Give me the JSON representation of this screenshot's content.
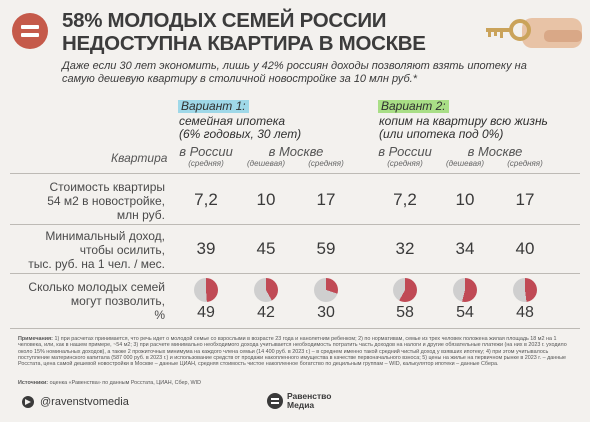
{
  "title": {
    "line1": "58% МОЛОДЫХ СЕМЕЙ РОССИИ",
    "line2": "НЕДОСТУПНА КВАРТИРА В МОСКВЕ"
  },
  "subtitle": "Даже если 30 лет экономить, лишь у 42% россиян доходы позволяют взять ипотеку на самую дешевую квартиру в столичной новостройке за 10 млн руб.*",
  "variant1": {
    "tag": "Вариант 1:",
    "line1": "семейная ипотека",
    "line2": "(6% годовых, 30 лет)"
  },
  "variant2": {
    "tag": "Вариант 2:",
    "line1": "копим на квартиру всю жизнь",
    "line2": "(или ипотека под 0%)"
  },
  "table": {
    "kvartira_label": "Квартира",
    "columns": [
      {
        "main": "в России",
        "sub": "(средняя)"
      },
      {
        "main": "в Москве",
        "sub": "(дешевая)"
      },
      {
        "main": "",
        "sub": "(средняя)"
      },
      {
        "main": "в России",
        "sub": "(средняя)"
      },
      {
        "main": "в Москве",
        "sub": "(дешевая)"
      },
      {
        "main": "",
        "sub": "(средняя)"
      }
    ],
    "rows": [
      {
        "label1": "Стоимость квартиры",
        "label2": "54 м2 в новостройке,",
        "label3": "млн руб.",
        "values": [
          "7,2",
          "10",
          "17",
          "7,2",
          "10",
          "17"
        ]
      },
      {
        "label1": "Минимальный доход,",
        "label2": "чтобы осилить,",
        "label3": "тыс. руб. на 1 чел. / мес.",
        "values": [
          "39",
          "45",
          "59",
          "32",
          "34",
          "40"
        ]
      },
      {
        "label1": "Сколько молодых семей",
        "label2": "могут позволить,",
        "label3": "%",
        "values": [
          "49",
          "42",
          "30",
          "58",
          "54",
          "48"
        ]
      }
    ],
    "pie_fractions": [
      0.49,
      0.42,
      0.3,
      0.58,
      0.54,
      0.48
    ]
  },
  "colors": {
    "accent": "#c55a4a",
    "variant1": "#9fd8e8",
    "variant2": "#a9de86",
    "pie_fill": "#c04a55",
    "pie_bg": "#cfcfcf"
  },
  "notes": {
    "label": "Примечания:",
    "text": "1) при расчетах принимается, что речь идет о молодой семье со взрослыми в возрасте 23 года и нанолетним ребенком; 2) по нормативам, семье из трех человек положена жилая площадь 18 м2 на 1 человека, или, как в нашем примере, ~54 м2; 3) при расчете минимально необходимого дохода учитывается необходимость потратить часть доходов на налоги и другие обязательные платежи (на них в 2023 г. уходило около 15% номинальных доходов), а также 2 прожиточных минимума на каждого члена семьи (14 400 руб. в 2023 г.) – в среднем именно такой средний чистый доход у взявших ипотеку; 4) при этом учитывалось поступление материнского капитала (587 000 руб. в 2023 г.) и использование средств от продажи накопленного имущества в качестве первоначального взноса; 5) цены на жилье на первичном рынке в 2023 г. – данные Росстата, цена самой дешевой новостройки в Москве – данные ЦИАН, средняя стоимость чистое накопленное богатство по децильным группам – WID, калькулятор ипотеки – данные Сбера."
  },
  "sources": {
    "label": "Источники:",
    "text": "оценка «Равенства» по данным Росстата, ЦИАН, Сбер, WID"
  },
  "footer": {
    "telegram": "@ravenstvomedia",
    "brand_line1": "Равенство",
    "brand_line2": "Медиа"
  }
}
